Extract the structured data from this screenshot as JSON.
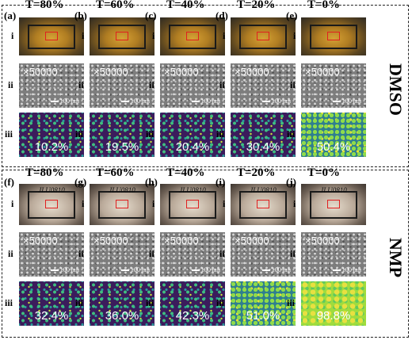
{
  "row_labels": {
    "i": "i",
    "ii": "ii",
    "iii": "iii"
  },
  "groups": [
    {
      "side_label": "DMSO",
      "panels": [
        {
          "letter": "(a)",
          "temperature": "T=80%",
          "zoom": "×50000",
          "scale": "100 nm",
          "coverage": "10.2%"
        },
        {
          "letter": "(b)",
          "temperature": "T=60%",
          "zoom": "×50000",
          "scale": "100 nm",
          "coverage": "19.5%"
        },
        {
          "letter": "(c)",
          "temperature": "T=40%",
          "zoom": "×50000",
          "scale": "100 nm",
          "coverage": "20.4%"
        },
        {
          "letter": "(d)",
          "temperature": "T=20%",
          "zoom": "×50000",
          "scale": "100 nm",
          "coverage": "30.4%"
        },
        {
          "letter": "(e)",
          "temperature": "T=0%",
          "zoom": "×50000",
          "scale": "100 nm",
          "coverage": "50.4%"
        }
      ]
    },
    {
      "side_label": "NMP",
      "photo_text": "JLU0810",
      "panels": [
        {
          "letter": "(f)",
          "temperature": "T=80%",
          "zoom": "×50000",
          "scale": "100 nm",
          "coverage": "32.4%"
        },
        {
          "letter": "(g)",
          "temperature": "T=60%",
          "zoom": "×50000",
          "scale": "100 nm",
          "coverage": "36.0%"
        },
        {
          "letter": "(h)",
          "temperature": "T=40%",
          "zoom": "×50000",
          "scale": "100 nm",
          "coverage": "42.3%"
        },
        {
          "letter": "(i)",
          "temperature": "T=20%",
          "zoom": "×50000",
          "scale": "100 nm",
          "coverage": "51.0%"
        },
        {
          "letter": "(j)",
          "temperature": "T=0%",
          "zoom": "×50000",
          "scale": "100 nm",
          "coverage": "98.8%"
        }
      ]
    }
  ]
}
